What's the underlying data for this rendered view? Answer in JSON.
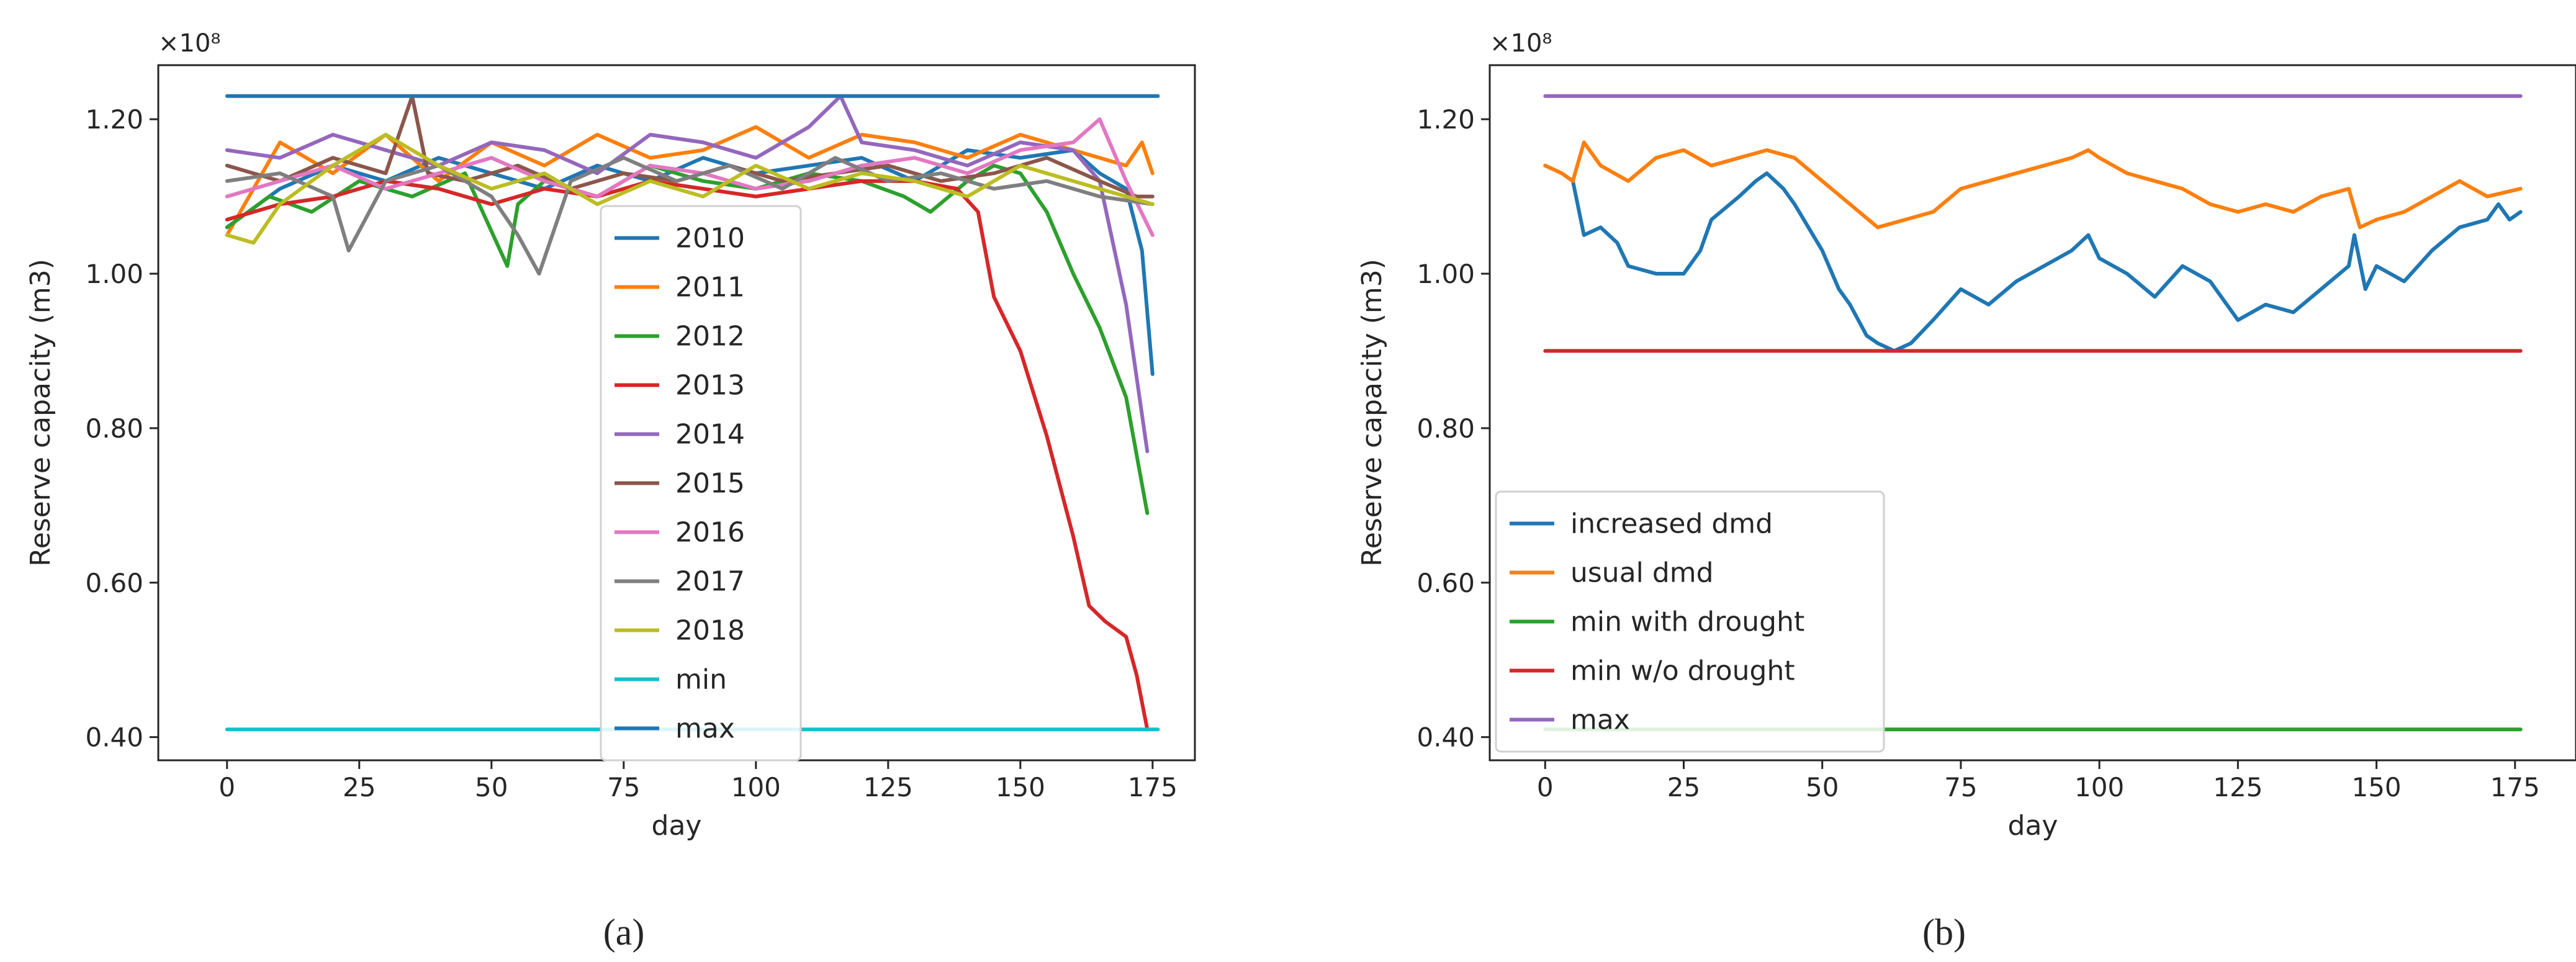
{
  "chart_data": [
    {
      "id": "a",
      "type": "line",
      "caption": "(a)",
      "xlabel": "day",
      "ylabel": "Reserve capacity (m3)",
      "offset_text": "×10⁸",
      "xlim": [
        -13,
        183
      ],
      "ylim": [
        0.37,
        1.27
      ],
      "xticks": [
        0,
        25,
        50,
        75,
        100,
        125,
        150,
        175
      ],
      "yticks": [
        0.4,
        0.6,
        0.8,
        1.0,
        1.2
      ],
      "ytick_labels": [
        "0.40",
        "0.60",
        "0.80",
        "1.00",
        "1.20"
      ],
      "legend_position": "lower-center",
      "series": [
        {
          "name": "2010",
          "color": "#1f77b4",
          "x": [
            0,
            10,
            20,
            30,
            40,
            50,
            60,
            70,
            80,
            90,
            100,
            110,
            120,
            130,
            140,
            150,
            160,
            165,
            170,
            173,
            175
          ],
          "y": [
            1.06,
            1.11,
            1.14,
            1.12,
            1.15,
            1.13,
            1.11,
            1.14,
            1.12,
            1.15,
            1.13,
            1.14,
            1.15,
            1.12,
            1.16,
            1.15,
            1.16,
            1.13,
            1.11,
            1.03,
            0.87
          ]
        },
        {
          "name": "2011",
          "color": "#ff7f0e",
          "x": [
            0,
            10,
            20,
            30,
            40,
            50,
            60,
            70,
            80,
            90,
            100,
            110,
            120,
            130,
            140,
            150,
            160,
            170,
            173,
            175
          ],
          "y": [
            1.05,
            1.17,
            1.13,
            1.18,
            1.12,
            1.17,
            1.14,
            1.18,
            1.15,
            1.16,
            1.19,
            1.15,
            1.18,
            1.17,
            1.15,
            1.18,
            1.16,
            1.14,
            1.17,
            1.13
          ]
        },
        {
          "name": "2012",
          "color": "#2ca02c",
          "x": [
            0,
            8,
            16,
            25,
            35,
            45,
            53,
            55,
            60,
            70,
            80,
            90,
            100,
            110,
            120,
            128,
            133,
            140,
            145,
            150,
            155,
            160,
            165,
            170,
            174
          ],
          "y": [
            1.06,
            1.1,
            1.08,
            1.12,
            1.1,
            1.13,
            1.01,
            1.09,
            1.12,
            1.1,
            1.14,
            1.12,
            1.11,
            1.13,
            1.12,
            1.1,
            1.08,
            1.12,
            1.14,
            1.13,
            1.08,
            1.0,
            0.93,
            0.84,
            0.69
          ]
        },
        {
          "name": "2013",
          "color": "#d62728",
          "x": [
            0,
            10,
            20,
            30,
            40,
            50,
            60,
            70,
            80,
            90,
            100,
            110,
            120,
            130,
            138,
            142,
            145,
            150,
            155,
            160,
            163,
            166,
            170,
            172,
            174
          ],
          "y": [
            1.07,
            1.09,
            1.1,
            1.12,
            1.11,
            1.09,
            1.11,
            1.1,
            1.12,
            1.11,
            1.1,
            1.11,
            1.12,
            1.12,
            1.11,
            1.08,
            0.97,
            0.9,
            0.79,
            0.66,
            0.57,
            0.55,
            0.53,
            0.48,
            0.41
          ]
        },
        {
          "name": "2014",
          "color": "#9467bd",
          "x": [
            0,
            10,
            20,
            30,
            40,
            50,
            60,
            70,
            80,
            90,
            100,
            110,
            116,
            120,
            130,
            140,
            150,
            160,
            165,
            170,
            174
          ],
          "y": [
            1.16,
            1.15,
            1.18,
            1.16,
            1.14,
            1.17,
            1.16,
            1.13,
            1.18,
            1.17,
            1.15,
            1.19,
            1.23,
            1.17,
            1.16,
            1.14,
            1.17,
            1.16,
            1.12,
            0.96,
            0.77
          ]
        },
        {
          "name": "2015",
          "color": "#8c564b",
          "x": [
            0,
            10,
            20,
            30,
            35,
            38,
            45,
            55,
            65,
            75,
            85,
            95,
            105,
            115,
            125,
            135,
            145,
            155,
            165,
            172,
            175
          ],
          "y": [
            1.14,
            1.12,
            1.15,
            1.13,
            1.23,
            1.13,
            1.12,
            1.14,
            1.11,
            1.13,
            1.12,
            1.14,
            1.12,
            1.13,
            1.14,
            1.12,
            1.13,
            1.15,
            1.12,
            1.1,
            1.1
          ]
        },
        {
          "name": "2016",
          "color": "#e377c2",
          "x": [
            0,
            10,
            20,
            30,
            40,
            50,
            60,
            70,
            80,
            90,
            100,
            110,
            120,
            130,
            140,
            150,
            160,
            165,
            170,
            175
          ],
          "y": [
            1.1,
            1.12,
            1.14,
            1.11,
            1.13,
            1.15,
            1.12,
            1.1,
            1.14,
            1.13,
            1.11,
            1.12,
            1.14,
            1.15,
            1.13,
            1.16,
            1.17,
            1.2,
            1.12,
            1.05
          ]
        },
        {
          "name": "2017",
          "color": "#7f7f7f",
          "x": [
            0,
            10,
            20,
            23,
            30,
            40,
            50,
            55,
            59,
            65,
            75,
            85,
            95,
            105,
            115,
            125,
            135,
            145,
            155,
            165,
            175
          ],
          "y": [
            1.12,
            1.13,
            1.1,
            1.03,
            1.12,
            1.14,
            1.1,
            1.05,
            1.0,
            1.12,
            1.15,
            1.12,
            1.14,
            1.11,
            1.15,
            1.12,
            1.13,
            1.11,
            1.12,
            1.1,
            1.09
          ]
        },
        {
          "name": "2018",
          "color": "#bcbd22",
          "x": [
            0,
            5,
            10,
            20,
            30,
            40,
            50,
            60,
            70,
            80,
            90,
            100,
            110,
            120,
            130,
            140,
            150,
            160,
            170,
            175
          ],
          "y": [
            1.05,
            1.04,
            1.09,
            1.14,
            1.18,
            1.14,
            1.11,
            1.13,
            1.09,
            1.12,
            1.1,
            1.14,
            1.11,
            1.13,
            1.12,
            1.1,
            1.14,
            1.12,
            1.1,
            1.09
          ]
        },
        {
          "name": "min",
          "color": "#17becf",
          "x": [
            0,
            176
          ],
          "y": [
            0.41,
            0.41
          ]
        },
        {
          "name": "max",
          "color": "#1f77b4",
          "x": [
            0,
            176
          ],
          "y": [
            1.23,
            1.23
          ]
        }
      ]
    },
    {
      "id": "b",
      "type": "line",
      "caption": "(b)",
      "xlabel": "day",
      "ylabel": "Reserve capacity (m3)",
      "offset_text": "×10⁸",
      "xlim": [
        -10,
        186
      ],
      "ylim": [
        0.37,
        1.27
      ],
      "xticks": [
        0,
        25,
        50,
        75,
        100,
        125,
        150,
        175
      ],
      "yticks": [
        0.4,
        0.6,
        0.8,
        1.0,
        1.2
      ],
      "ytick_labels": [
        "0.40",
        "0.60",
        "0.80",
        "1.00",
        "1.20"
      ],
      "legend_position": "lower-left",
      "series": [
        {
          "name": "increased dmd",
          "color": "#1f77b4",
          "x": [
            0,
            3,
            5,
            7,
            10,
            13,
            15,
            20,
            25,
            28,
            30,
            35,
            38,
            40,
            43,
            45,
            50,
            53,
            55,
            58,
            60,
            63,
            66,
            70,
            75,
            80,
            85,
            90,
            95,
            98,
            100,
            105,
            110,
            115,
            120,
            125,
            130,
            135,
            140,
            145,
            146,
            148,
            150,
            155,
            160,
            165,
            170,
            172,
            174,
            176
          ],
          "y": [
            1.14,
            1.13,
            1.12,
            1.05,
            1.06,
            1.04,
            1.01,
            1.0,
            1.0,
            1.03,
            1.07,
            1.1,
            1.12,
            1.13,
            1.11,
            1.09,
            1.03,
            0.98,
            0.96,
            0.92,
            0.91,
            0.9,
            0.91,
            0.94,
            0.98,
            0.96,
            0.99,
            1.01,
            1.03,
            1.05,
            1.02,
            1.0,
            0.97,
            1.01,
            0.99,
            0.94,
            0.96,
            0.95,
            0.98,
            1.01,
            1.05,
            0.98,
            1.01,
            0.99,
            1.03,
            1.06,
            1.07,
            1.09,
            1.07,
            1.08
          ]
        },
        {
          "name": "usual dmd",
          "color": "#ff7f0e",
          "x": [
            0,
            3,
            5,
            7,
            10,
            15,
            20,
            25,
            30,
            35,
            40,
            45,
            50,
            55,
            60,
            65,
            70,
            75,
            80,
            85,
            90,
            95,
            98,
            100,
            105,
            110,
            115,
            120,
            125,
            130,
            135,
            140,
            145,
            147,
            150,
            155,
            160,
            165,
            170,
            176
          ],
          "y": [
            1.14,
            1.13,
            1.12,
            1.17,
            1.14,
            1.12,
            1.15,
            1.16,
            1.14,
            1.15,
            1.16,
            1.15,
            1.12,
            1.09,
            1.06,
            1.07,
            1.08,
            1.11,
            1.12,
            1.13,
            1.14,
            1.15,
            1.16,
            1.15,
            1.13,
            1.12,
            1.11,
            1.09,
            1.08,
            1.09,
            1.08,
            1.1,
            1.11,
            1.06,
            1.07,
            1.08,
            1.1,
            1.12,
            1.1,
            1.11
          ]
        },
        {
          "name": "min with drought",
          "color": "#2ca02c",
          "x": [
            0,
            176
          ],
          "y": [
            0.41,
            0.41
          ]
        },
        {
          "name": "min w/o drought",
          "color": "#d62728",
          "x": [
            0,
            176
          ],
          "y": [
            0.9,
            0.9
          ]
        },
        {
          "name": "max",
          "color": "#9467bd",
          "x": [
            0,
            176
          ],
          "y": [
            1.23,
            1.23
          ]
        }
      ]
    }
  ]
}
